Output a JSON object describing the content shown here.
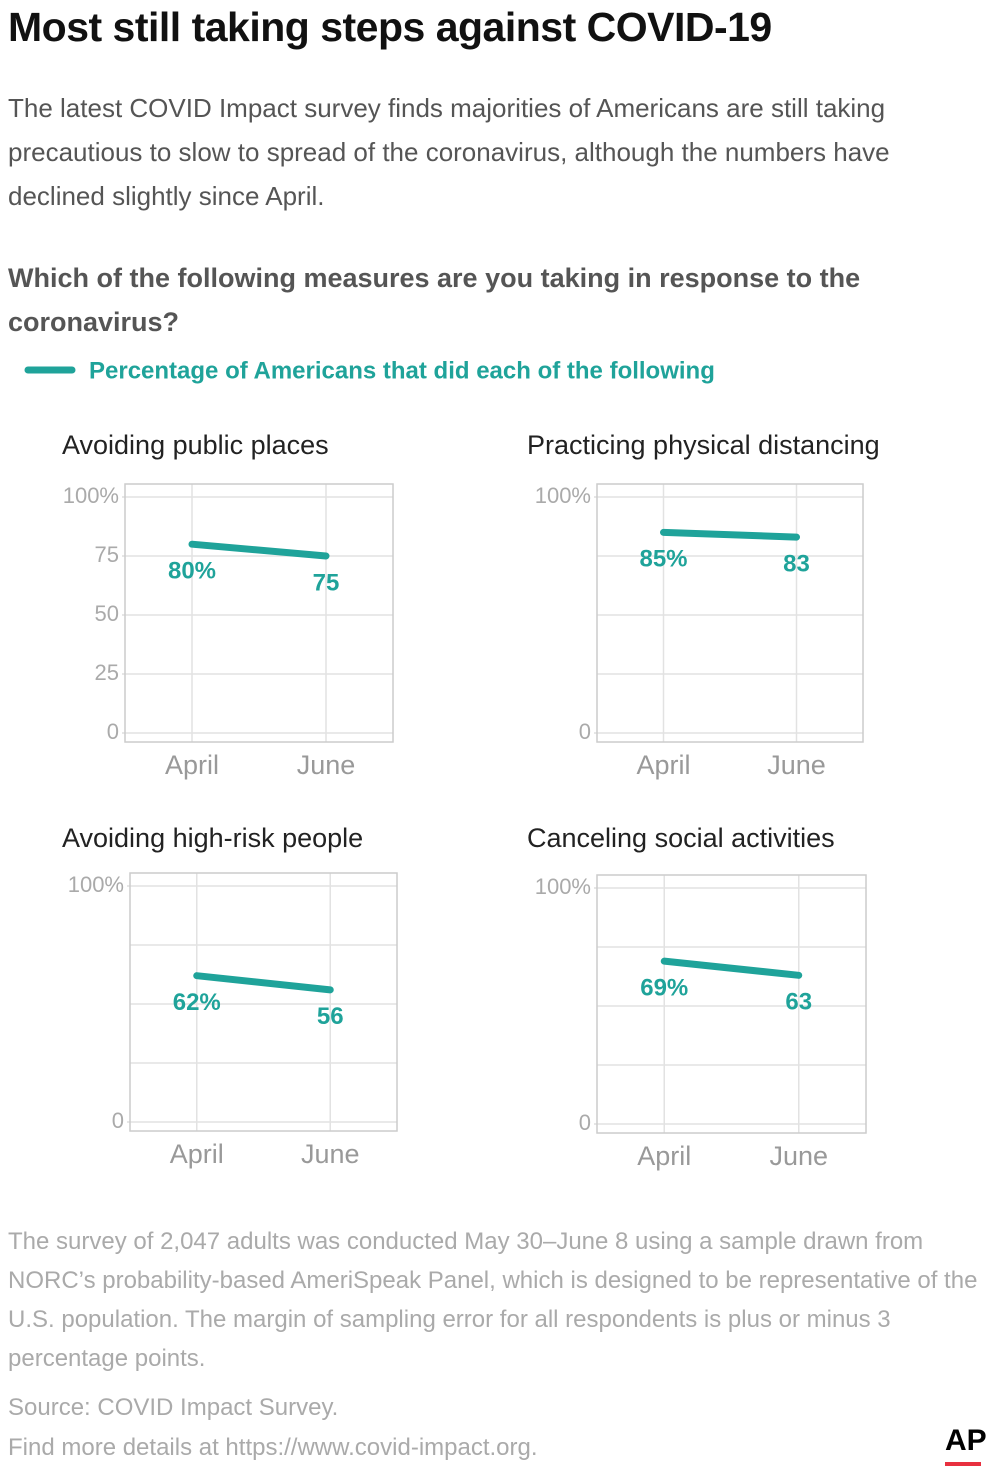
{
  "title": "Most still taking steps against COVID-19",
  "subtitle": "The latest COVID Impact survey finds majorities of Americans are still taking precautious to slow to spread of the coronavirus, although the numbers have declined slightly since April.",
  "question": "Which of the following measures are you taking in response to the coronavirus?",
  "legend": {
    "label": "Percentage of Americans that did each of the following",
    "color": "#1fa39a"
  },
  "chart_data": [
    {
      "type": "line",
      "title": "Avoiding public places",
      "categories": [
        "April",
        "June"
      ],
      "values": [
        80,
        75
      ],
      "value_labels": [
        "80%",
        "75"
      ],
      "color": "#1fa39a",
      "ylim": [
        0,
        100
      ],
      "yticks": [
        0,
        25,
        50,
        75,
        {
          "value": 100,
          "label": "100%"
        }
      ],
      "ygrid": [
        0,
        25,
        50,
        75,
        100
      ],
      "grid": true
    },
    {
      "type": "line",
      "title": "Practicing physical distancing",
      "categories": [
        "April",
        "June"
      ],
      "values": [
        85,
        83
      ],
      "value_labels": [
        "85%",
        "83"
      ],
      "color": "#1fa39a",
      "ylim": [
        0,
        100
      ],
      "yticks": [
        0,
        {
          "value": 100,
          "label": "100%"
        }
      ],
      "ygrid": [
        0,
        25,
        50,
        75,
        100
      ],
      "grid": true
    },
    {
      "type": "line",
      "title": "Avoiding high-risk people",
      "categories": [
        "April",
        "June"
      ],
      "values": [
        62,
        56
      ],
      "value_labels": [
        "62%",
        "56"
      ],
      "color": "#1fa39a",
      "ylim": [
        0,
        100
      ],
      "yticks": [
        0,
        {
          "value": 100,
          "label": "100%"
        }
      ],
      "ygrid": [
        0,
        25,
        50,
        75,
        100
      ],
      "grid": true
    },
    {
      "type": "line",
      "title": "Canceling social activities",
      "categories": [
        "April",
        "June"
      ],
      "values": [
        69,
        63
      ],
      "value_labels": [
        "69%",
        "63"
      ],
      "color": "#1fa39a",
      "ylim": [
        0,
        100
      ],
      "yticks": [
        0,
        {
          "value": 100,
          "label": "100%"
        }
      ],
      "ygrid": [
        0,
        25,
        50,
        75,
        100
      ],
      "grid": true
    }
  ],
  "note": "The survey of 2,047 adults was conducted May 30–June 8 using a sample drawn from NORC’s probability-based AmeriSpeak Panel, which is designed to be representative of the U.S. population. The margin of sampling error for all respondents is plus or minus 3 percentage points.",
  "source": [
    "Source: COVID Impact Survey.",
    "Find more details at https://www.covid-impact.org."
  ],
  "logo": "AP"
}
